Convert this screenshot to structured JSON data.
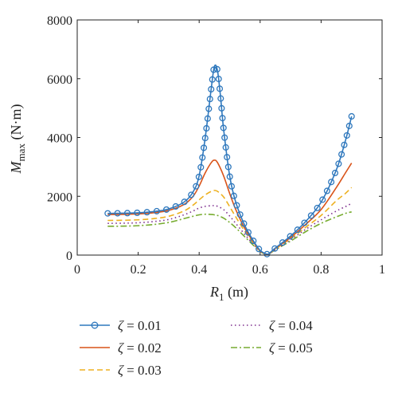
{
  "chart_data": {
    "type": "line",
    "xlabel": {
      "main": "R",
      "sub": "1",
      "unit": " (m)"
    },
    "ylabel": {
      "main": "M",
      "sub": "max",
      "unit": " (N·m)"
    },
    "xlim": [
      0,
      1
    ],
    "ylim": [
      0,
      8000
    ],
    "xticks": [
      0,
      0.2,
      0.4,
      0.6,
      0.8,
      1
    ],
    "xtick_labels": [
      "0",
      "0.2",
      "0.4",
      "0.6",
      "0.8",
      "1"
    ],
    "yticks": [
      0,
      2000,
      4000,
      6000,
      8000
    ],
    "ytick_labels": [
      "0",
      "2000",
      "4000",
      "6000",
      "8000"
    ],
    "grid": false,
    "legend_position": "below-plot",
    "series": [
      {
        "name": "ζ = 0.01",
        "label_main": "ζ",
        "label_value": " = 0.01",
        "color": "#2f78bd",
        "style": "solid",
        "marker": "circle",
        "points": [
          [
            0.1,
            1420
          ],
          [
            0.15,
            1425
          ],
          [
            0.2,
            1440
          ],
          [
            0.25,
            1480
          ],
          [
            0.3,
            1570
          ],
          [
            0.35,
            1800
          ],
          [
            0.38,
            2150
          ],
          [
            0.4,
            2700
          ],
          [
            0.42,
            4000
          ],
          [
            0.44,
            5700
          ],
          [
            0.45,
            6420
          ],
          [
            0.46,
            6280
          ],
          [
            0.47,
            5400
          ],
          [
            0.48,
            4300
          ],
          [
            0.5,
            2700
          ],
          [
            0.52,
            1800
          ],
          [
            0.55,
            1000
          ],
          [
            0.58,
            450
          ],
          [
            0.6,
            160
          ],
          [
            0.62,
            40
          ],
          [
            0.63,
            60
          ],
          [
            0.65,
            240
          ],
          [
            0.7,
            650
          ],
          [
            0.75,
            1150
          ],
          [
            0.8,
            1800
          ],
          [
            0.85,
            2900
          ],
          [
            0.88,
            3900
          ],
          [
            0.9,
            4720
          ]
        ]
      },
      {
        "name": "ζ = 0.02",
        "label_main": "ζ",
        "label_value": " = 0.02",
        "color": "#d95319",
        "style": "solid",
        "marker": "none",
        "points": [
          [
            0.1,
            1380
          ],
          [
            0.15,
            1385
          ],
          [
            0.2,
            1400
          ],
          [
            0.25,
            1440
          ],
          [
            0.3,
            1520
          ],
          [
            0.35,
            1720
          ],
          [
            0.38,
            2000
          ],
          [
            0.4,
            2350
          ],
          [
            0.42,
            2800
          ],
          [
            0.44,
            3150
          ],
          [
            0.45,
            3230
          ],
          [
            0.46,
            3150
          ],
          [
            0.48,
            2700
          ],
          [
            0.5,
            2100
          ],
          [
            0.52,
            1550
          ],
          [
            0.55,
            900
          ],
          [
            0.58,
            420
          ],
          [
            0.6,
            150
          ],
          [
            0.62,
            30
          ],
          [
            0.63,
            50
          ],
          [
            0.65,
            230
          ],
          [
            0.7,
            600
          ],
          [
            0.75,
            1050
          ],
          [
            0.8,
            1550
          ],
          [
            0.85,
            2300
          ],
          [
            0.88,
            2800
          ],
          [
            0.9,
            3130
          ]
        ]
      },
      {
        "name": "ζ = 0.03",
        "label_main": "ζ",
        "label_value": " = 0.03",
        "color": "#edb120",
        "style": "dashed",
        "marker": "none",
        "points": [
          [
            0.1,
            1180
          ],
          [
            0.15,
            1185
          ],
          [
            0.2,
            1200
          ],
          [
            0.25,
            1240
          ],
          [
            0.3,
            1320
          ],
          [
            0.35,
            1500
          ],
          [
            0.38,
            1700
          ],
          [
            0.4,
            1880
          ],
          [
            0.42,
            2050
          ],
          [
            0.44,
            2170
          ],
          [
            0.45,
            2200
          ],
          [
            0.46,
            2170
          ],
          [
            0.48,
            1980
          ],
          [
            0.5,
            1650
          ],
          [
            0.52,
            1300
          ],
          [
            0.55,
            800
          ],
          [
            0.58,
            380
          ],
          [
            0.6,
            140
          ],
          [
            0.62,
            30
          ],
          [
            0.63,
            50
          ],
          [
            0.65,
            210
          ],
          [
            0.7,
            560
          ],
          [
            0.75,
            950
          ],
          [
            0.8,
            1350
          ],
          [
            0.85,
            1850
          ],
          [
            0.88,
            2100
          ],
          [
            0.9,
            2300
          ]
        ]
      },
      {
        "name": "ζ = 0.04",
        "label_main": "ζ",
        "label_value": " = 0.04",
        "color": "#7e2f8e",
        "style": "dotted",
        "marker": "none",
        "points": [
          [
            0.1,
            1080
          ],
          [
            0.15,
            1085
          ],
          [
            0.2,
            1100
          ],
          [
            0.25,
            1140
          ],
          [
            0.3,
            1210
          ],
          [
            0.35,
            1370
          ],
          [
            0.38,
            1500
          ],
          [
            0.4,
            1600
          ],
          [
            0.42,
            1660
          ],
          [
            0.44,
            1680
          ],
          [
            0.45,
            1680
          ],
          [
            0.46,
            1660
          ],
          [
            0.48,
            1550
          ],
          [
            0.5,
            1330
          ],
          [
            0.52,
            1080
          ],
          [
            0.55,
            700
          ],
          [
            0.58,
            340
          ],
          [
            0.6,
            130
          ],
          [
            0.62,
            25
          ],
          [
            0.63,
            45
          ],
          [
            0.65,
            195
          ],
          [
            0.7,
            520
          ],
          [
            0.75,
            880
          ],
          [
            0.8,
            1200
          ],
          [
            0.85,
            1500
          ],
          [
            0.88,
            1650
          ],
          [
            0.9,
            1760
          ]
        ]
      },
      {
        "name": "ζ = 0.05",
        "label_main": "ζ",
        "label_value": " = 0.05",
        "color": "#77ac30",
        "style": "dashdot",
        "marker": "none",
        "points": [
          [
            0.1,
            980
          ],
          [
            0.15,
            985
          ],
          [
            0.2,
            1000
          ],
          [
            0.25,
            1040
          ],
          [
            0.3,
            1110
          ],
          [
            0.35,
            1240
          ],
          [
            0.38,
            1320
          ],
          [
            0.4,
            1370
          ],
          [
            0.42,
            1390
          ],
          [
            0.44,
            1380
          ],
          [
            0.45,
            1370
          ],
          [
            0.46,
            1350
          ],
          [
            0.48,
            1260
          ],
          [
            0.5,
            1110
          ],
          [
            0.52,
            930
          ],
          [
            0.55,
            620
          ],
          [
            0.58,
            310
          ],
          [
            0.6,
            120
          ],
          [
            0.62,
            25
          ],
          [
            0.63,
            45
          ],
          [
            0.65,
            180
          ],
          [
            0.7,
            480
          ],
          [
            0.75,
            800
          ],
          [
            0.8,
            1080
          ],
          [
            0.85,
            1300
          ],
          [
            0.88,
            1420
          ],
          [
            0.9,
            1470
          ]
        ]
      }
    ]
  }
}
